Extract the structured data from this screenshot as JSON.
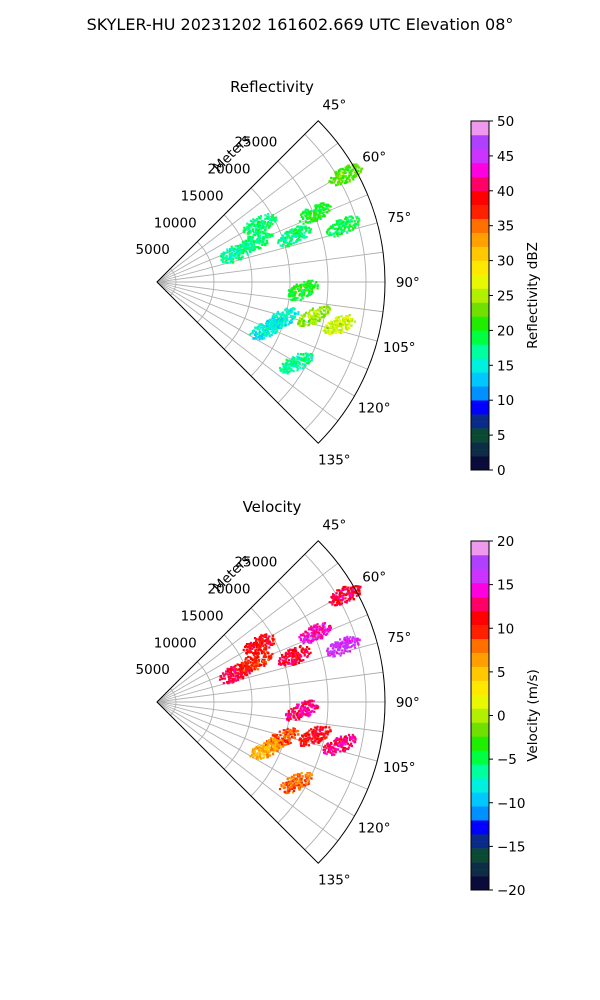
{
  "title": "SKYLER-HU  20231202  161602.669 UTC Elevation 08°",
  "chart_data": [
    {
      "type": "heatmap",
      "title": "Reflectivity",
      "projection": "polar sector",
      "radial_label": "Meters",
      "radial_ticks": [
        "5000",
        "10000",
        "15000",
        "20000",
        "25000"
      ],
      "angle_ticks": [
        "45°",
        "60°",
        "75°",
        "90°",
        "105°",
        "120°",
        "135°"
      ],
      "colorbar": {
        "label": "Reflectivity dBZ",
        "min": 0,
        "max": 50,
        "ticks": [
          "0",
          "5",
          "10",
          "15",
          "20",
          "25",
          "30",
          "35",
          "40",
          "45",
          "50"
        ]
      },
      "grid": true,
      "echoes": [
        {
          "azimuth_deg": 69,
          "range_m": 11000,
          "value": 17
        },
        {
          "azimuth_deg": 67,
          "range_m": 14000,
          "value": 18
        },
        {
          "azimuth_deg": 71,
          "range_m": 19000,
          "value": 18
        },
        {
          "azimuth_deg": 66,
          "range_m": 22500,
          "value": 20
        },
        {
          "azimuth_deg": 73,
          "range_m": 25500,
          "value": 19
        },
        {
          "azimuth_deg": 93,
          "range_m": 19000,
          "value": 20
        },
        {
          "azimuth_deg": 102,
          "range_m": 21000,
          "value": 24
        },
        {
          "azimuth_deg": 103,
          "range_m": 24500,
          "value": 26
        },
        {
          "azimuth_deg": 106,
          "range_m": 17000,
          "value": 15
        },
        {
          "azimuth_deg": 113,
          "range_m": 15500,
          "value": 15
        },
        {
          "azimuth_deg": 120,
          "range_m": 21000,
          "value": 17
        },
        {
          "azimuth_deg": 60,
          "range_m": 15500,
          "value": 18
        },
        {
          "azimuth_deg": 60,
          "range_m": 28500,
          "value": 22
        }
      ]
    },
    {
      "type": "heatmap",
      "title": "Velocity",
      "projection": "polar sector",
      "radial_label": "Meters",
      "radial_ticks": [
        "5000",
        "10000",
        "15000",
        "20000",
        "25000"
      ],
      "angle_ticks": [
        "45°",
        "60°",
        "75°",
        "90°",
        "105°",
        "120°",
        "135°"
      ],
      "colorbar": {
        "label": "Velocity (m/s)",
        "min": -20,
        "max": 20,
        "ticks": [
          "−20",
          "−15",
          "−10",
          "−5",
          "0",
          "5",
          "10",
          "15",
          "20"
        ]
      },
      "grid": true,
      "echoes": [
        {
          "azimuth_deg": 69,
          "range_m": 11000,
          "value": 12
        },
        {
          "azimuth_deg": 67,
          "range_m": 14000,
          "value": 10
        },
        {
          "azimuth_deg": 71,
          "range_m": 19000,
          "value": 12
        },
        {
          "azimuth_deg": 66,
          "range_m": 22500,
          "value": 14
        },
        {
          "azimuth_deg": 73,
          "range_m": 25500,
          "value": 16
        },
        {
          "azimuth_deg": 93,
          "range_m": 19000,
          "value": 13
        },
        {
          "azimuth_deg": 102,
          "range_m": 21000,
          "value": 11
        },
        {
          "azimuth_deg": 103,
          "range_m": 24500,
          "value": 13
        },
        {
          "azimuth_deg": 106,
          "range_m": 17000,
          "value": 9
        },
        {
          "azimuth_deg": 113,
          "range_m": 15500,
          "value": 6
        },
        {
          "azimuth_deg": 120,
          "range_m": 21000,
          "value": 8
        },
        {
          "azimuth_deg": 60,
          "range_m": 15500,
          "value": 11
        },
        {
          "azimuth_deg": 60,
          "range_m": 28500,
          "value": 12
        }
      ]
    }
  ]
}
